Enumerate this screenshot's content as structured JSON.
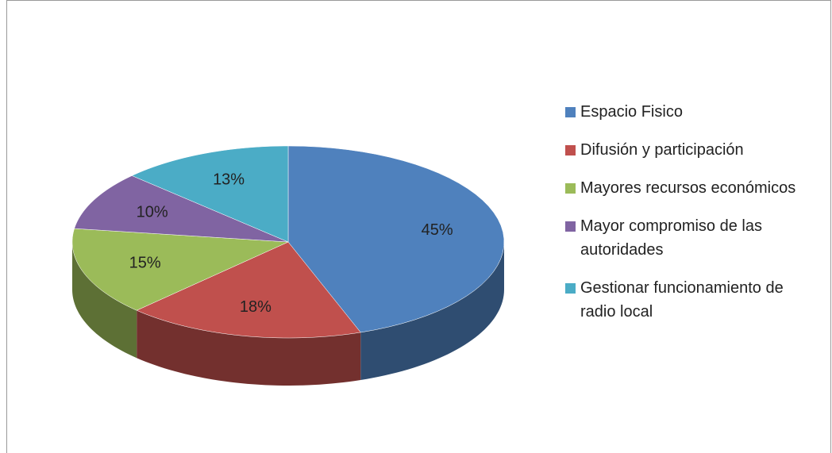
{
  "chart_data": {
    "type": "pie3d",
    "categories": [
      "Espacio Fisico",
      "Difusión y participación",
      "Mayores recursos económicos",
      "Mayor compromiso de las autoridades",
      "Gestionar funcionamiento de radio local"
    ],
    "values": [
      45,
      18,
      15,
      10,
      13
    ],
    "value_labels": [
      "45%",
      "18%",
      "15%",
      "10%",
      "13%"
    ],
    "colors": [
      "#4f81bd",
      "#c0504d",
      "#9bbb59",
      "#8064a2",
      "#4bacc6"
    ],
    "legend": "right"
  }
}
